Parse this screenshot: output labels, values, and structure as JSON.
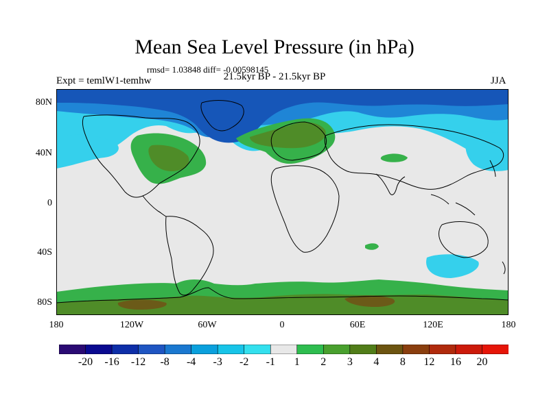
{
  "title": "Mean Sea Level Pressure (in hPa)",
  "stats_text": "rmsd= 1.03848 diff= -0.00598145",
  "experiment_text": "Expt = temlW1-temhw",
  "period_text": "21.5kyr BP - 21.5kyr BP",
  "season_text": "JJA",
  "lat_labels": [
    "80N",
    "40N",
    "0",
    "40S",
    "80S"
  ],
  "lon_labels": [
    "180",
    "120W",
    "60W",
    "0",
    "60E",
    "120E",
    "180"
  ],
  "colorbar": {
    "colors": [
      "#2a0a73",
      "#0a0a90",
      "#0d2ea8",
      "#1f55c2",
      "#1a78d0",
      "#0aa0dd",
      "#17c4e8",
      "#33e0ee",
      "#e8e8e8",
      "#2ebd4f",
      "#49a02e",
      "#517d19",
      "#6c5410",
      "#8a3e0e",
      "#b02a0c",
      "#cc1a0a",
      "#e61508"
    ],
    "labels": [
      "-20",
      "-16",
      "-12",
      "-8",
      "-4",
      "-3",
      "-2",
      "-1",
      "1",
      "2",
      "3",
      "4",
      "8",
      "12",
      "16",
      "20"
    ]
  },
  "map_colors": {
    "ocean_neutral": "#e8e8e8",
    "deep_negative": "#1656b8",
    "mid_negative": "#1f85d6",
    "light_negative": "#35d0ec",
    "light_positive": "#36b14a",
    "mid_positive": "#4f8c28",
    "strong_positive": "#6b5a18",
    "coast": "#000000"
  }
}
